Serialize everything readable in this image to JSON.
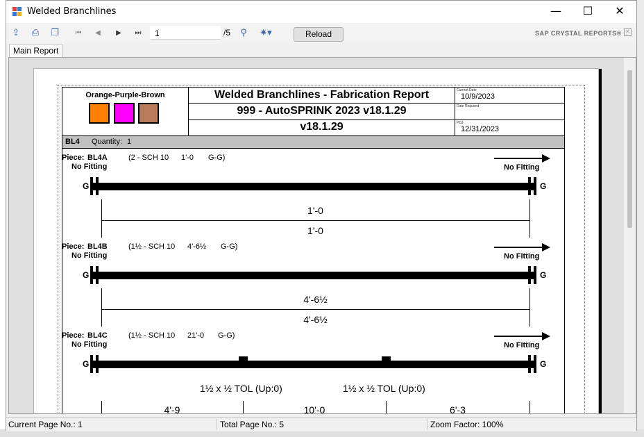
{
  "window": {
    "title": "Welded Branchlines",
    "minimize_glyph": "—",
    "maximize_glyph": "☐",
    "close_glyph": "✕"
  },
  "toolbar": {
    "page_value": "1",
    "page_total": "/5",
    "reload_label": "Reload",
    "brand": "SAP CRYSTAL REPORTS®",
    "icons": [
      "export-icon",
      "print-icon",
      "copy-icon",
      "first-page-icon",
      "prev-page-icon",
      "next-page-icon",
      "last-page-icon",
      "find-icon",
      "zoom-icon"
    ]
  },
  "tabs": [
    {
      "label": "Main Report"
    }
  ],
  "report": {
    "color_code": "Orange-Purple-Brown",
    "swatches": [
      "#ff8000",
      "#ff00ff",
      "#b97a57"
    ],
    "title": "Welded Branchlines  - Fabrication Report",
    "project": "999 - AutoSPRINK 2023 v18.1.29",
    "version": "v18.1.29",
    "current_date_label": "Current Date",
    "current_date": "10/9/2023",
    "date_required_label": "Date Required",
    "pdj_label": "PDJ",
    "pdj_date": "12/31/2023",
    "group_label": "BL4",
    "quantity_label": "Quantity:",
    "quantity_value": "1",
    "pieces": [
      {
        "piece_label": "Piece:",
        "piece_id": "BL4A",
        "spec": "(2 - SCH 10",
        "length": "1'-0",
        "ends": "G-G)",
        "left_fitting": "No Fitting",
        "right_fitting": "No Fitting",
        "left_end": "G",
        "right_end": "G",
        "dim_top": "1'-0",
        "dim_bottom": "1'-0"
      },
      {
        "piece_label": "Piece:",
        "piece_id": "BL4B",
        "spec": "(1½ - SCH 10",
        "length": "4'-6½",
        "ends": "G-G)",
        "left_fitting": "No Fitting",
        "right_fitting": "No Fitting",
        "left_end": "G",
        "right_end": "G",
        "dim_top": "4'-6½",
        "dim_bottom": "4'-6½"
      },
      {
        "piece_label": "Piece:",
        "piece_id": "BL4C",
        "spec": "(1½ - SCH 10",
        "length": "21'-0",
        "ends": "G-G)",
        "left_fitting": "No Fitting",
        "right_fitting": "No Fitting",
        "left_end": "G",
        "right_end": "G",
        "outlets": [
          "1½ x ½ TOL (Up:0)",
          "1½ x ½ TOL (Up:0)"
        ],
        "segments": [
          "4'-9",
          "10'-0",
          "6'-3"
        ]
      }
    ]
  },
  "status": {
    "current_page": "Current Page No.: 1",
    "total_page": "Total Page No.: 5",
    "zoom": "Zoom Factor: 100%"
  }
}
